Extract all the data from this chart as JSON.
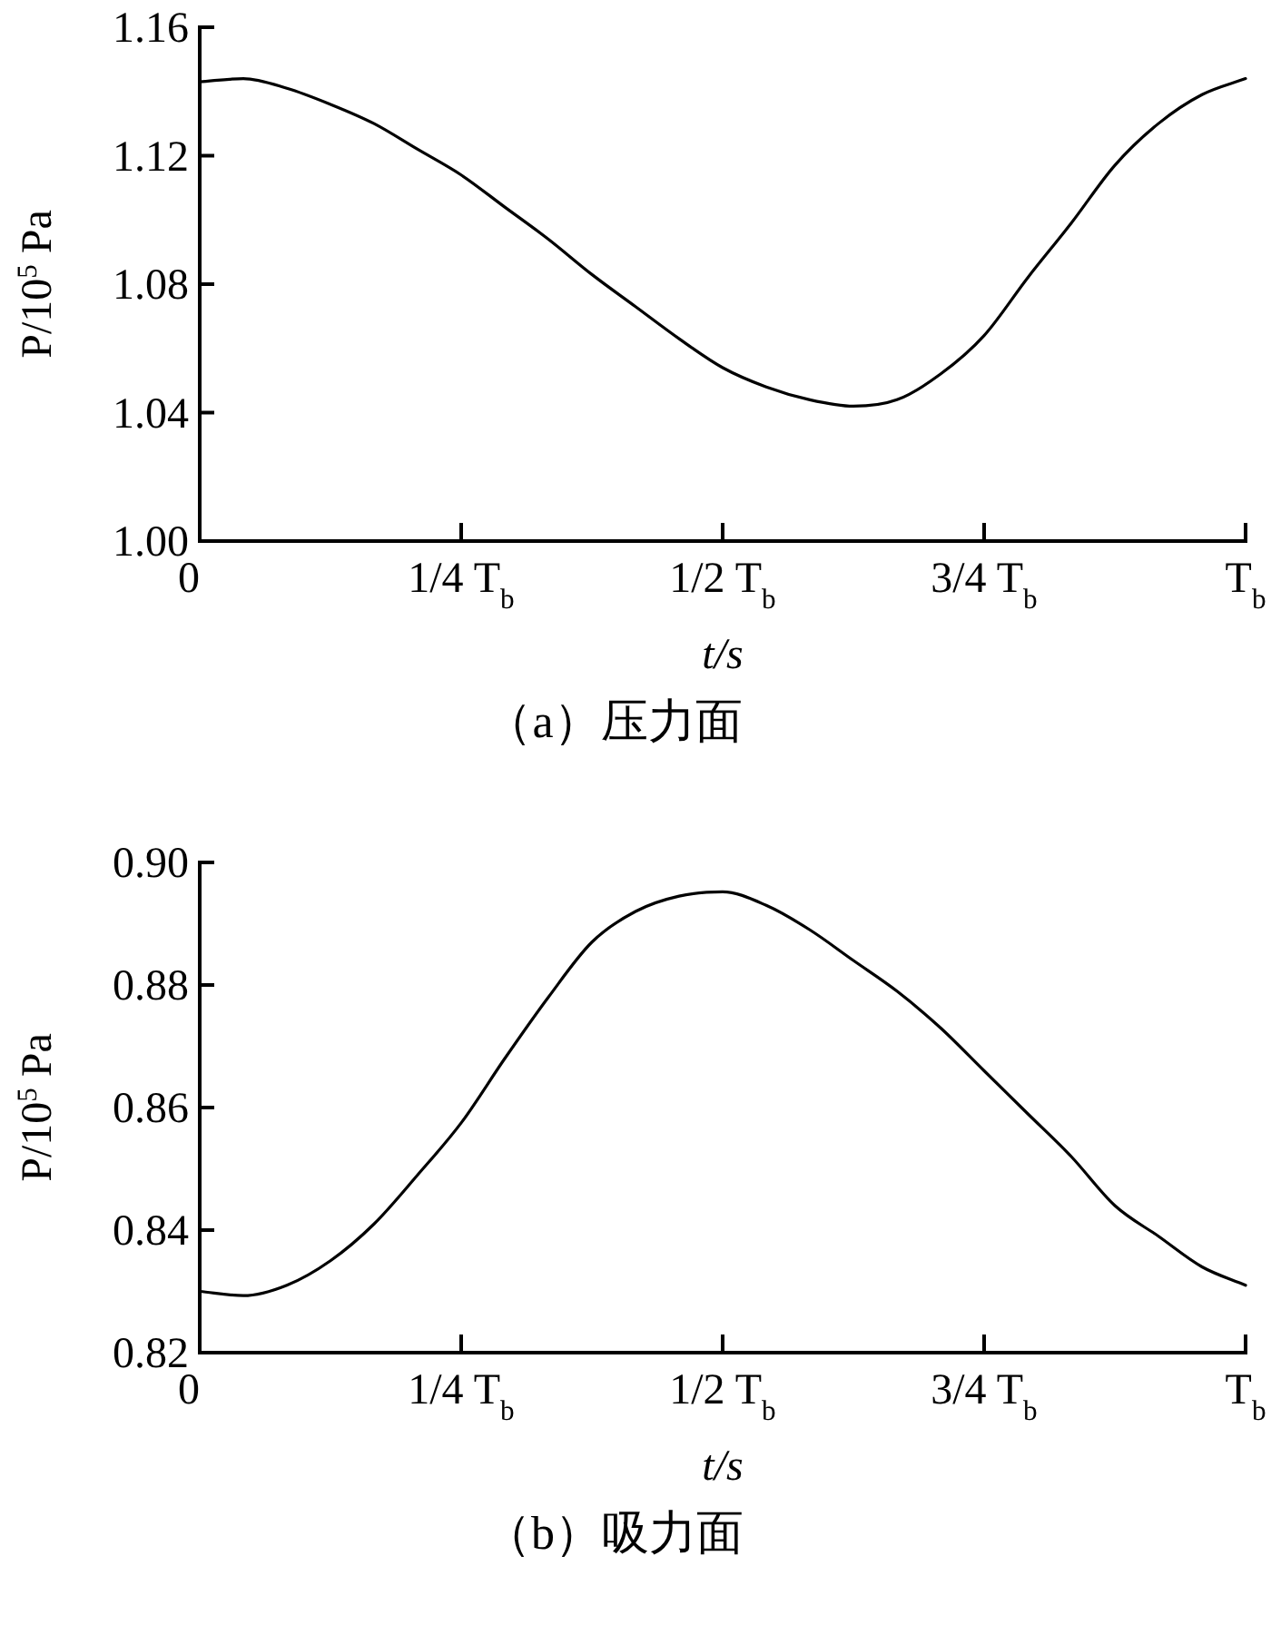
{
  "chart_data": [
    {
      "type": "line",
      "title": "（a）压力面",
      "xlabel": "t/s",
      "ylabel": "P/10$^{5}$ Pa",
      "grid": false,
      "marker": "none",
      "line_style": "solid",
      "categories": [
        "0",
        null,
        null,
        null,
        null,
        null,
        "1/4 T$_{b}$",
        null,
        null,
        null,
        null,
        null,
        "1/2 T$_{b}$",
        null,
        null,
        null,
        null,
        null,
        "3/4 T$_{b}$",
        null,
        null,
        null,
        null,
        null,
        "T$_{b}$"
      ],
      "ylim": [
        1.0,
        1.16
      ],
      "yticks": [
        {
          "value": 1.0,
          "label": "1.00"
        },
        1.04,
        1.08,
        1.12,
        1.16
      ],
      "series": [
        {
          "color": "#000000",
          "values": [
            1.143,
            1.144,
            1.141,
            1.136,
            1.13,
            1.122,
            1.114,
            1.104,
            1.094,
            1.083,
            1.073,
            1.063,
            1.054,
            1.048,
            1.044,
            1.042,
            1.044,
            1.052,
            1.064,
            1.082,
            1.099,
            1.117,
            1.13,
            1.139,
            1.144
          ]
        }
      ]
    },
    {
      "type": "line",
      "title": "（b）吸力面",
      "xlabel": "t/s",
      "ylabel": "P/10$^{5}$ Pa",
      "grid": false,
      "marker": "none",
      "line_style": "solid",
      "categories": [
        "0",
        null,
        null,
        null,
        null,
        null,
        "1/4 T$_{b}$",
        null,
        null,
        null,
        null,
        null,
        "1/2 T$_{b}$",
        null,
        null,
        null,
        null,
        null,
        "3/4 T$_{b}$",
        null,
        null,
        null,
        null,
        null,
        "T$_{b}$"
      ],
      "ylim": [
        0.82,
        0.9
      ],
      "yticks": [
        0.82,
        0.84,
        0.86,
        0.88,
        {
          "value": 0.9,
          "label": "0.90"
        }
      ],
      "series": [
        {
          "color": "#000000",
          "values": [
            0.83,
            0.8293,
            0.831,
            0.835,
            0.841,
            0.849,
            0.8575,
            0.868,
            0.878,
            0.887,
            0.892,
            0.8945,
            0.8952,
            0.893,
            0.889,
            0.884,
            0.879,
            0.873,
            0.866,
            0.859,
            0.852,
            0.844,
            0.839,
            0.834,
            0.831
          ]
        }
      ]
    }
  ]
}
